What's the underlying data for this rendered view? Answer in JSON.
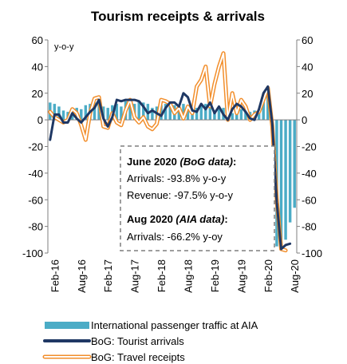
{
  "chart_data": {
    "type": "bar+line",
    "title": "Tourism receipts & arrivals",
    "unit_label": "y-o-y",
    "ylim": [
      -100,
      60
    ],
    "yticks": [
      60,
      40,
      20,
      0,
      -20,
      -40,
      -60,
      -80,
      -100
    ],
    "x_tick_labels": [
      "Feb-16",
      "Aug-16",
      "Feb-17",
      "Aug-17",
      "Feb-18",
      "Aug-18",
      "Feb-19",
      "Aug-19",
      "Feb-20",
      "Aug-20"
    ],
    "months": [
      "Jan-16",
      "Feb-16",
      "Mar-16",
      "Apr-16",
      "May-16",
      "Jun-16",
      "Jul-16",
      "Aug-16",
      "Sep-16",
      "Oct-16",
      "Nov-16",
      "Dec-16",
      "Jan-17",
      "Feb-17",
      "Mar-17",
      "Apr-17",
      "May-17",
      "Jun-17",
      "Jul-17",
      "Aug-17",
      "Sep-17",
      "Oct-17",
      "Nov-17",
      "Dec-17",
      "Jan-18",
      "Feb-18",
      "Mar-18",
      "Apr-18",
      "May-18",
      "Jun-18",
      "Jul-18",
      "Aug-18",
      "Sep-18",
      "Oct-18",
      "Nov-18",
      "Dec-18",
      "Jan-19",
      "Feb-19",
      "Mar-19",
      "Apr-19",
      "May-19",
      "Jun-19",
      "Jul-19",
      "Aug-19",
      "Sep-19",
      "Oct-19",
      "Nov-19",
      "Dec-19",
      "Jan-20",
      "Feb-20",
      "Mar-20",
      "Apr-20",
      "May-20",
      "Jun-20",
      "Jul-20",
      "Aug-20"
    ],
    "series": [
      {
        "name": "International passenger traffic at AIA",
        "kind": "bar",
        "color": "#4bacc6",
        "values": [
          13,
          12,
          10,
          7,
          6,
          9,
          9,
          8,
          11,
          12,
          13,
          12,
          10,
          9,
          11,
          12,
          10,
          14,
          13,
          12,
          14,
          13,
          12,
          9,
          10,
          11,
          12,
          10,
          11,
          10,
          12,
          9,
          10,
          9,
          11,
          12,
          9,
          6,
          8,
          9,
          7,
          5,
          7,
          8,
          9,
          6,
          7,
          8,
          15,
          20,
          -6,
          -95,
          -97,
          -90,
          -77,
          -66
        ]
      },
      {
        "name": "BoG: Tourist arrivals",
        "kind": "line",
        "color": "#1f3864",
        "values": [
          -15,
          4,
          4,
          -2,
          -2,
          5,
          1,
          -2,
          2,
          6,
          9,
          15,
          1,
          -5,
          2,
          15,
          14,
          15,
          15,
          15,
          14,
          10,
          5,
          7,
          5,
          3,
          9,
          13,
          13,
          10,
          20,
          17,
          7,
          6,
          12,
          8,
          13,
          5,
          10,
          4,
          0,
          8,
          12,
          10,
          6,
          1,
          0,
          8,
          20,
          25,
          -3,
          -62,
          -97,
          -94,
          -93,
          null
        ]
      },
      {
        "name": "BoG: Travel receipts",
        "kind": "line",
        "color": "#f28e2b",
        "values": [
          6,
          2,
          0,
          -2,
          0,
          8,
          5,
          -4,
          -15,
          5,
          16,
          17,
          -5,
          -6,
          5,
          -2,
          -4,
          7,
          15,
          2,
          -2,
          2,
          -5,
          -7,
          -3,
          15,
          14,
          12,
          5,
          9,
          1,
          10,
          5,
          25,
          30,
          40,
          10,
          27,
          40,
          50,
          0,
          20,
          5,
          15,
          10,
          0,
          4,
          6,
          15,
          24,
          -5,
          -60,
          -97,
          -98,
          null,
          null
        ]
      }
    ],
    "x_axis_label": "",
    "annotation": {
      "line1_bold": "June 2020 ",
      "line1_bi": "(BoG data)",
      "line1_tail": ":",
      "line2": "Arrivals: -93.8% y-o-y",
      "line3": "Revenue: -97.5% y-o-y",
      "line4_bold": "Aug 2020 ",
      "line4_bi": "(AIA data)",
      "line4_tail": ":",
      "line5": "Arrivals: -66.2% y-oy"
    },
    "legend": [
      {
        "label": "International passenger traffic at AIA",
        "symbol": "bar"
      },
      {
        "label": "BoG: Tourist arrivals",
        "symbol": "line"
      },
      {
        "label": "BoG: Travel receipts",
        "symbol": "outline-line"
      }
    ],
    "colors": {
      "bar": "#4bacc6",
      "arrivals": "#1f3864",
      "receipts": "#f28e2b",
      "axis": "#7f7f7f",
      "annotation_border": "#7f7f7f"
    }
  }
}
